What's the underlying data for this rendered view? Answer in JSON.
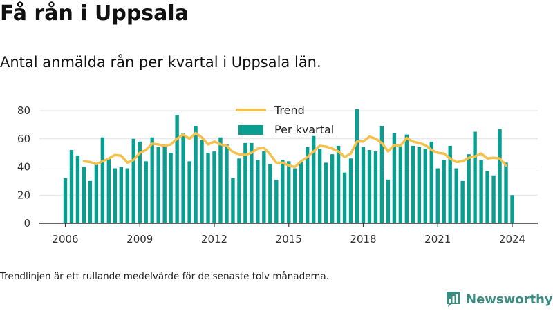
{
  "title": "Få rån i Uppsala",
  "subtitle": "Antal anmälda rån per kvartal i Uppsala län.",
  "footnote": "Trendlinjen är ett rullande medelvärde för de senaste tolv månaderna.",
  "brand": {
    "name": "Newsworthy",
    "icon": "newsworthy-logo-icon",
    "color": "#3b8c80"
  },
  "colors": {
    "bars": "#0a9e91",
    "trend": "#f5c04c",
    "grid": "#e2e2e2",
    "axis": "#333333"
  },
  "chart_data": {
    "type": "bar",
    "title": "",
    "xlabel": "",
    "ylabel": "",
    "ylim": [
      0,
      80
    ],
    "yticks": [
      0,
      20,
      40,
      60,
      80
    ],
    "xlim": [
      2005.85,
      2024.3
    ],
    "xticks": [
      "2006",
      "2009",
      "2012",
      "2015",
      "2018",
      "2021",
      "2024"
    ],
    "grid": "horizontal",
    "legend_position": "top-center",
    "series": [
      {
        "name": "Per kvartal",
        "type": "bar",
        "x_start": "2006Q1",
        "values": [
          32,
          52,
          48,
          40,
          30,
          42,
          61,
          46,
          39,
          40,
          39,
          60,
          58,
          44,
          61,
          54,
          54,
          50,
          77,
          64,
          44,
          69,
          59,
          50,
          51,
          61,
          56,
          32,
          46,
          57,
          57,
          45,
          51,
          42,
          31,
          45,
          44,
          39,
          44,
          54,
          62,
          53,
          43,
          49,
          55,
          36,
          46,
          81,
          54,
          52,
          51,
          69,
          31,
          64,
          55,
          63,
          55,
          54,
          53,
          58,
          39,
          45,
          55,
          39,
          30,
          49,
          65,
          45,
          37,
          34,
          67,
          43,
          20
        ]
      },
      {
        "name": "Trend",
        "type": "line",
        "x_start": "2006Q4",
        "values": [
          44,
          43.5,
          42,
          44,
          46,
          48.5,
          48,
          43,
          45,
          50,
          52,
          56.5,
          56,
          55,
          56,
          60,
          63,
          60,
          64,
          61,
          56,
          58,
          56,
          55,
          50.5,
          49,
          48.5,
          50,
          53,
          53.5,
          49,
          43,
          43,
          41,
          40,
          44,
          47,
          51,
          55,
          54.5,
          53,
          51,
          47,
          49.5,
          58,
          58,
          61.5,
          60,
          57,
          51,
          55.5,
          55,
          60.5,
          58,
          57,
          55.5,
          52,
          50,
          49.5,
          46,
          43.5,
          44,
          46.5,
          47.5,
          49.5,
          46,
          46.5,
          46,
          41
        ]
      }
    ]
  }
}
